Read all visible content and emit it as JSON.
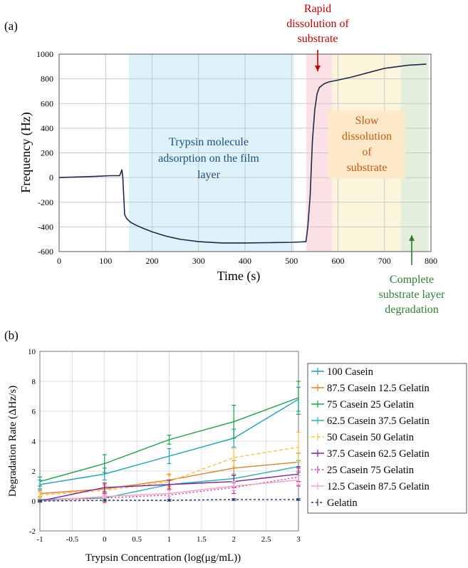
{
  "chart_data": [
    {
      "type": "line",
      "panel_label": "(a)",
      "xlabel": "Time (s)",
      "ylabel": "Frequency (Hz)",
      "xlim": [
        0,
        800
      ],
      "ylim": [
        -600,
        1000
      ],
      "x_ticks": [
        0,
        100,
        200,
        300,
        400,
        500,
        600,
        700,
        800
      ],
      "y_ticks": [
        -600,
        -400,
        -200,
        0,
        200,
        400,
        600,
        800,
        1000
      ],
      "grid": true,
      "line_color": "#1a2b4c",
      "series": [
        {
          "name": "Frequency",
          "x": [
            0,
            40,
            80,
            110,
            130,
            132,
            135,
            137,
            139,
            141,
            145,
            150,
            155,
            165,
            180,
            200,
            230,
            260,
            300,
            350,
            400,
            450,
            500,
            520,
            531,
            535,
            540,
            545,
            550,
            555,
            560,
            570,
            580,
            600,
            630,
            660,
            700,
            750,
            790
          ],
          "y": [
            0,
            5,
            10,
            15,
            15,
            30,
            65,
            0,
            -150,
            -300,
            -330,
            -350,
            -365,
            -385,
            -410,
            -440,
            -475,
            -500,
            -520,
            -530,
            -530,
            -528,
            -525,
            -522,
            -520,
            -400,
            -150,
            300,
            550,
            680,
            730,
            760,
            775,
            790,
            815,
            845,
            885,
            910,
            920
          ]
        }
      ],
      "regions": [
        {
          "id": "adsorption",
          "x_start": 150,
          "x_end": 505,
          "color": "#ddf2fb",
          "label_lines": [
            "Trypsin molecule",
            "adsorption on the film",
            "layer"
          ],
          "label_color": "#1f4e79"
        },
        {
          "id": "rapid",
          "x_start": 532,
          "x_end": 588,
          "color": "#fbe1e6",
          "label_lines": [
            "Rapid",
            "dissolution of",
            "substrate"
          ],
          "label_color": "#c00000"
        },
        {
          "id": "slow",
          "x_start": 588,
          "x_end": 735,
          "color": "#fdf4dc",
          "label_lines": [
            "Slow",
            "dissolution",
            "of",
            "substrate"
          ],
          "label_color": "#c55a11",
          "label_box": "#fde9c8"
        },
        {
          "id": "complete",
          "x_start": 735,
          "x_end": 795,
          "color": "#e3efdc",
          "label_lines": [
            "Complete",
            "substrate layer",
            "degradation"
          ],
          "label_color": "#2e7d32"
        }
      ]
    },
    {
      "type": "line",
      "panel_label": "(b)",
      "xlabel": "Trypsin Concentration (log(μg/mL))",
      "ylabel": "Degradation Rate (ΔHz/s)",
      "xlim": [
        -1,
        3
      ],
      "ylim": [
        -2,
        10
      ],
      "x_ticks": [
        -1,
        -0.5,
        0,
        0.5,
        1,
        1.5,
        2,
        2.5,
        3
      ],
      "y_ticks": [
        -2,
        0,
        2,
        4,
        6,
        8,
        10
      ],
      "grid": true,
      "x": [
        -1,
        0,
        1,
        2,
        3
      ],
      "series": [
        {
          "name": "100 Casein",
          "color": "#17a2bf",
          "dash": "",
          "values": [
            1.1,
            1.8,
            3.0,
            4.2,
            6.8
          ],
          "errors": [
            0.3,
            0.4,
            0.5,
            0.6,
            0.8
          ]
        },
        {
          "name": "87.5 Casein 12.5 Gelatin",
          "color": "#e67e22",
          "dash": "",
          "values": [
            0.5,
            0.8,
            1.4,
            2.2,
            2.6
          ],
          "errors": [
            0.2,
            0.3,
            0.4,
            0.5,
            0.6
          ]
        },
        {
          "name": "75 Casein 25 Gelatin",
          "color": "#19a34a",
          "dash": "",
          "values": [
            1.3,
            2.5,
            4.1,
            5.3,
            6.9
          ],
          "errors": [
            0.3,
            0.6,
            0.3,
            1.1,
            1.1
          ]
        },
        {
          "name": "62.5 Casein 37.5 Gelatin",
          "color": "#2ab3b3",
          "dash": "",
          "values": [
            0.1,
            0.2,
            1.1,
            1.5,
            2.3
          ],
          "errors": [
            0.1,
            0.2,
            0.3,
            0.3,
            0.4
          ]
        },
        {
          "name": "50 Casein 50 Gelatin",
          "color": "#f5c242",
          "dash": "5,3",
          "values": [
            0.4,
            0.7,
            1.3,
            2.9,
            3.6
          ],
          "errors": [
            0.2,
            0.3,
            0.4,
            0.6,
            1.0
          ]
        },
        {
          "name": "37.5 Casein 62.5 Gelatin",
          "color": "#7b1fa2",
          "dash": "",
          "values": [
            0.0,
            0.9,
            1.1,
            1.3,
            1.8
          ],
          "errors": [
            0.1,
            0.3,
            0.3,
            0.4,
            0.5
          ]
        },
        {
          "name": "25 Casein 75 Gelatin",
          "color": "#d12e9e",
          "dash": "2,3",
          "values": [
            0.0,
            0.2,
            0.4,
            0.9,
            1.6
          ],
          "errors": [
            0.1,
            0.3,
            0.4,
            0.4,
            0.6
          ]
        },
        {
          "name": "12.5 Casein 87.5 Gelatin",
          "color": "#f2a3c0",
          "dash": "",
          "values": [
            0.0,
            0.3,
            0.5,
            1.0,
            1.4
          ],
          "errors": [
            0.1,
            0.1,
            0.2,
            0.3,
            0.3
          ]
        },
        {
          "name": "Gelatin",
          "color": "#1f3a66",
          "dash": "3,3",
          "values": [
            0.0,
            0.05,
            0.05,
            0.1,
            0.1
          ],
          "errors": [
            0.05,
            0.05,
            0.05,
            0.05,
            0.05
          ]
        }
      ],
      "legend_position": "right"
    }
  ]
}
